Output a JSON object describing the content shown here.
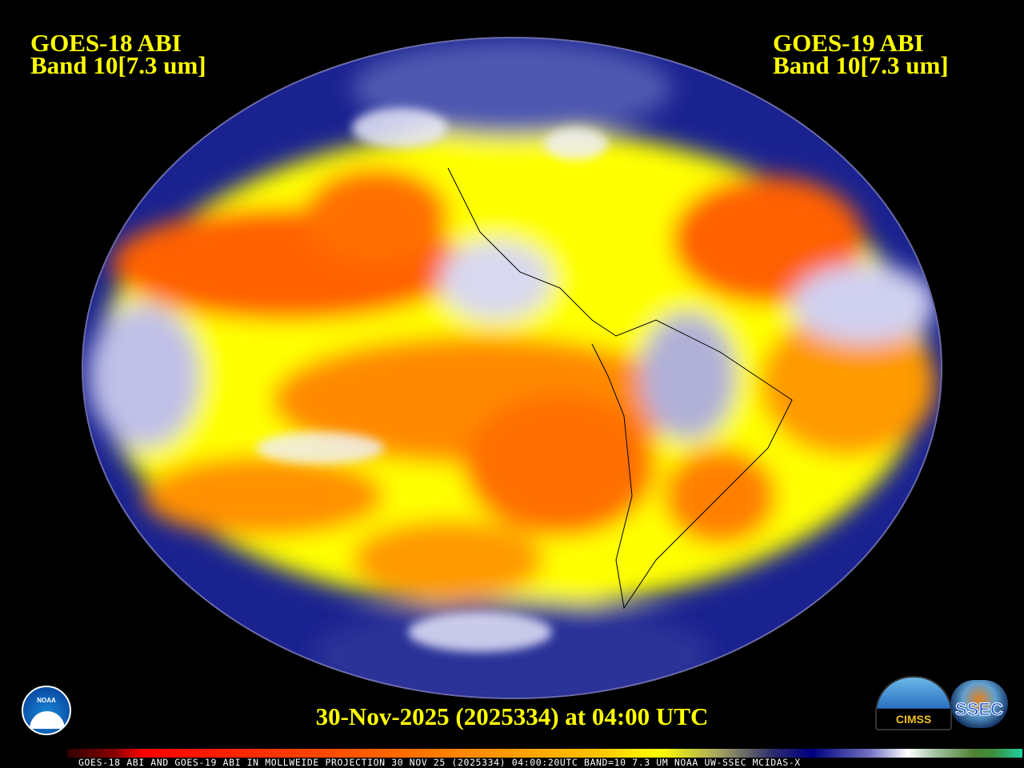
{
  "left_title": {
    "line1": "GOES-18 ABI",
    "line2": "Band 10[7.3 um]"
  },
  "right_title": {
    "line1": "GOES-19 ABI",
    "line2": "Band 10[7.3 um]"
  },
  "date_label": "30-Nov-2025 (2025334) at 04:00 UTC",
  "caption": "GOES-18 ABI AND GOES-19 ABI IN MOLLWEIDE PROJECTION 30 NOV 25 (2025334) 04:00:20UTC BAND=10 7.3 UM NOAA UW-SSEC MCIDAS-X",
  "projection": "Mollweide",
  "logos": {
    "noaa": "NOAA",
    "cimss": "CIMSS",
    "ssec": "SSEC"
  },
  "colors": {
    "title": "#ffff00",
    "dry": "#ff4000",
    "moist": "#000080",
    "clouds": "#ffffff"
  }
}
